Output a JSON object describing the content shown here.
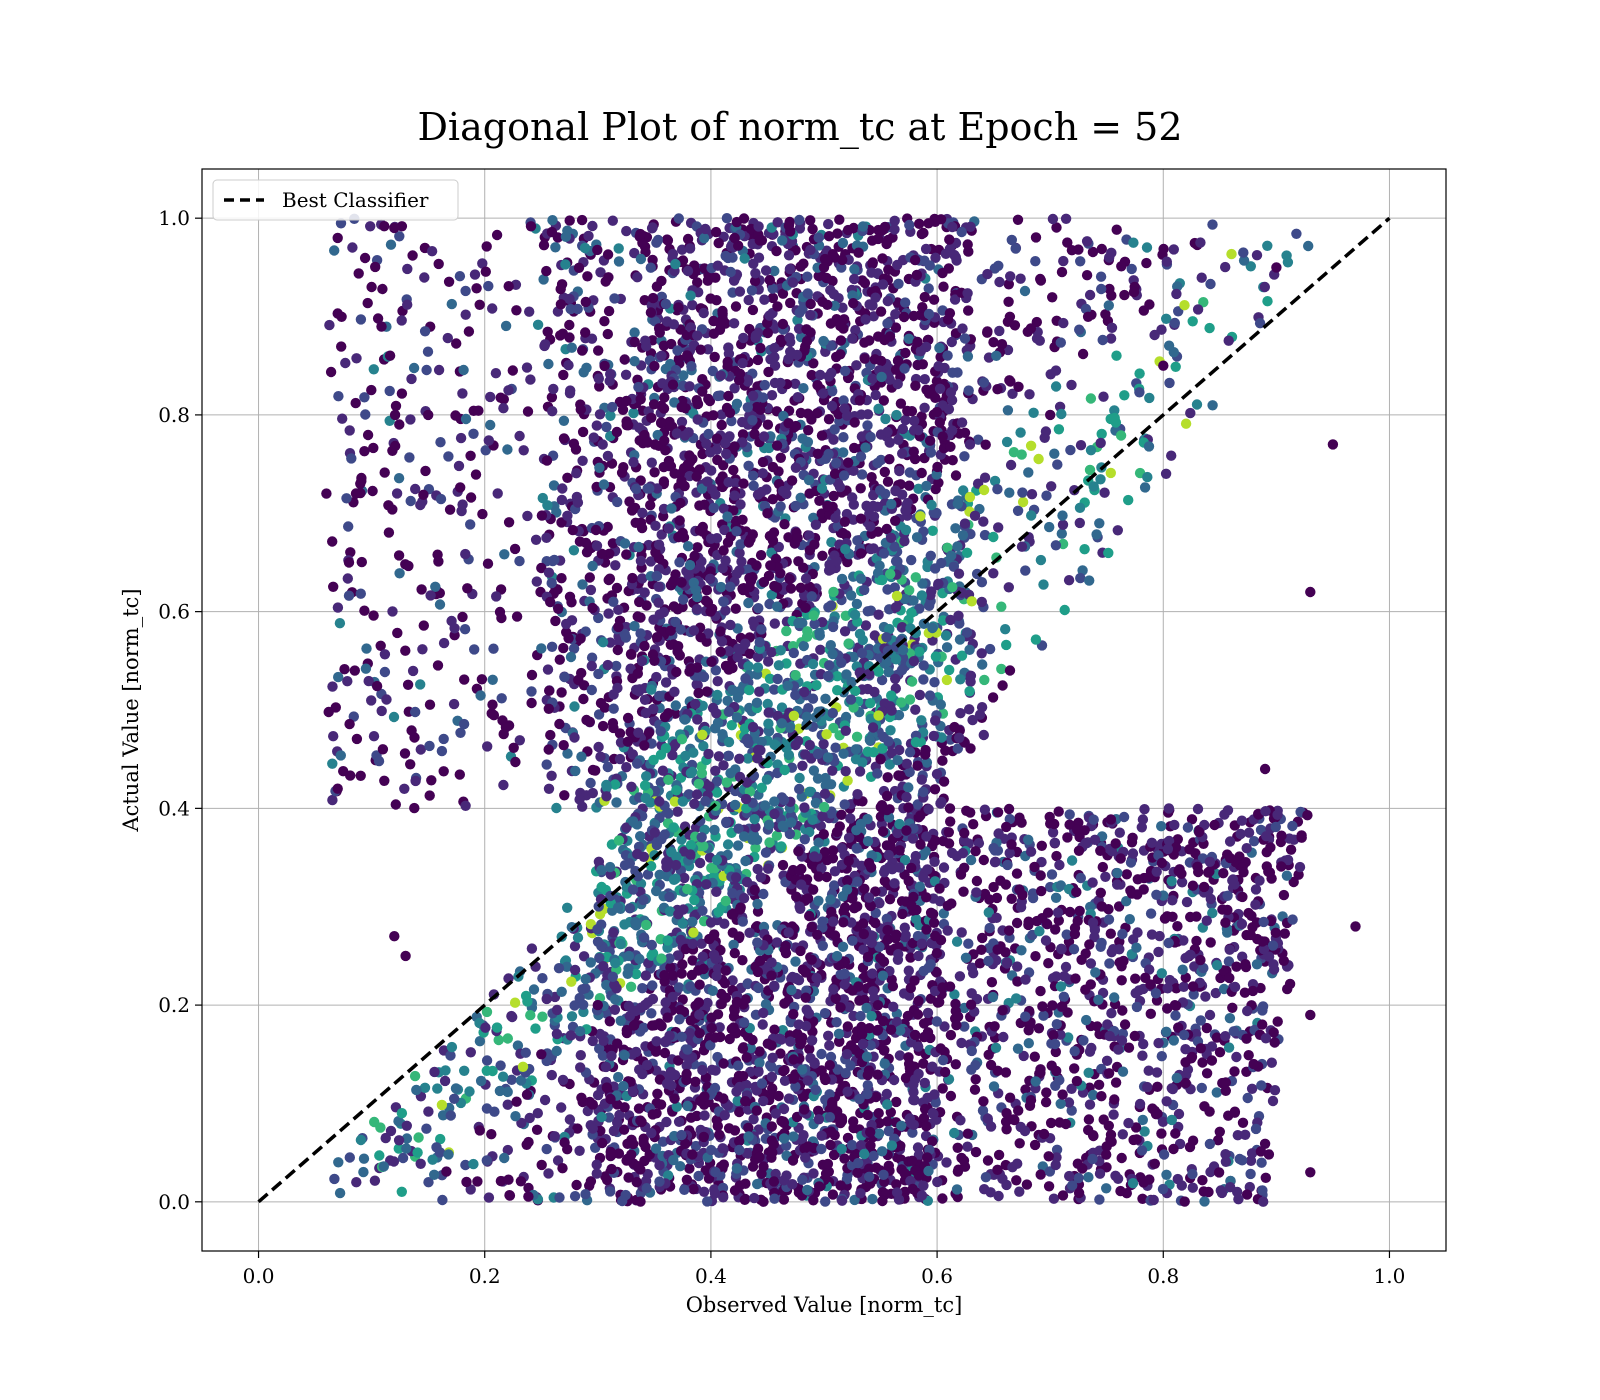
{
  "chart_data": {
    "type": "scatter",
    "title": "Diagonal Plot of norm_tc at Epoch = 52",
    "xlabel": "Observed Value [norm_tc]",
    "ylabel": "Actual Value [norm_tc]",
    "xlim": [
      -0.05,
      1.05
    ],
    "ylim": [
      -0.05,
      1.05
    ],
    "x_ticks": [
      0.0,
      0.2,
      0.4,
      0.6,
      0.8,
      1.0
    ],
    "y_ticks": [
      0.0,
      0.2,
      0.4,
      0.6,
      0.8,
      1.0
    ],
    "x_tick_labels": [
      "0.0",
      "0.2",
      "0.4",
      "0.6",
      "0.8",
      "1.0"
    ],
    "y_tick_labels": [
      "0.0",
      "0.2",
      "0.4",
      "0.6",
      "0.8",
      "1.0"
    ],
    "grid": true,
    "legend": {
      "position": "top-left",
      "entries": [
        "Best Classifier"
      ]
    },
    "colormap": "viridis",
    "colors": {
      "viridis": [
        "#440154",
        "#482878",
        "#3e4989",
        "#31688e",
        "#26828e",
        "#1f9e89",
        "#35b779",
        "#6ece58",
        "#b5de2b",
        "#fde725"
      ],
      "reference_line": "#000000",
      "grid": "#b0b0b0"
    },
    "series": [
      {
        "name": "Best Classifier",
        "type": "line",
        "style": "dashed",
        "x": [
          0.0,
          1.0
        ],
        "y": [
          0.0,
          1.0
        ]
      },
      {
        "type": "scatter",
        "density_regions": [
          {
            "actual_range": [
              0.0,
              0.4
            ],
            "observed_range": [
              0.04,
              0.93
            ],
            "pattern": "diagonal-offset-lower"
          },
          {
            "actual_range": [
              0.4,
              1.0
            ],
            "observed_range": [
              0.06,
              0.97
            ],
            "pattern": "diagonal-offset-upper"
          }
        ],
        "points": [
          [
            0.06,
            0.72
          ],
          [
            0.07,
            0.42
          ],
          [
            0.11,
            0.46
          ],
          [
            0.97,
            0.28
          ],
          [
            0.93,
            0.19
          ],
          [
            0.09,
            0.73
          ],
          [
            0.07,
            0.98
          ],
          [
            0.12,
            0.99
          ],
          [
            0.93,
            0.03
          ],
          [
            0.84,
            0.01
          ],
          [
            0.95,
            0.77
          ],
          [
            0.93,
            0.62
          ],
          [
            0.89,
            0.44
          ],
          [
            0.87,
            0.31
          ],
          [
            0.15,
            0.8
          ],
          [
            0.1,
            0.93
          ],
          [
            0.08,
            0.65
          ],
          [
            0.12,
            0.27
          ],
          [
            0.13,
            0.25
          ],
          [
            0.88,
            0.14
          ],
          [
            0.35,
            0.55
          ],
          [
            0.45,
            0.7
          ],
          [
            0.55,
            0.45
          ],
          [
            0.65,
            0.32
          ],
          [
            0.3,
            0.2
          ],
          [
            0.25,
            0.15
          ],
          [
            0.7,
            0.8
          ],
          [
            0.8,
            0.85
          ],
          [
            0.9,
            0.95
          ],
          [
            0.5,
            0.95
          ]
        ]
      }
    ]
  }
}
